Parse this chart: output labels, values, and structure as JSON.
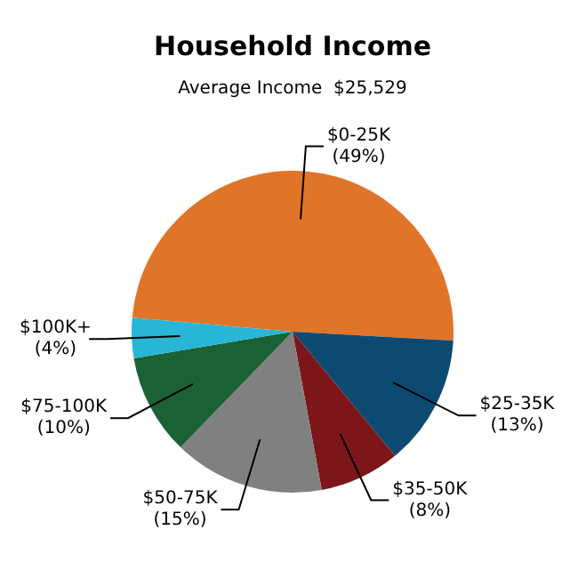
{
  "chart_data": {
    "type": "pie",
    "title": "Household Income",
    "subtitle": "Average Income  $25,529",
    "categories": [
      "$0-25K",
      "$25-35K",
      "$35-50K",
      "$50-75K",
      "$75-100K",
      "$100K+"
    ],
    "values": [
      49,
      13,
      8,
      15,
      10,
      4
    ],
    "value_labels": [
      "(49%)",
      "(13%)",
      "(8%)",
      "(15%)",
      "(10%)",
      "(4%)"
    ],
    "colors": [
      "#e07428",
      "#0d4a72",
      "#7d1618",
      "#808080",
      "#1a6136",
      "#27b6d6"
    ],
    "legend": false
  }
}
